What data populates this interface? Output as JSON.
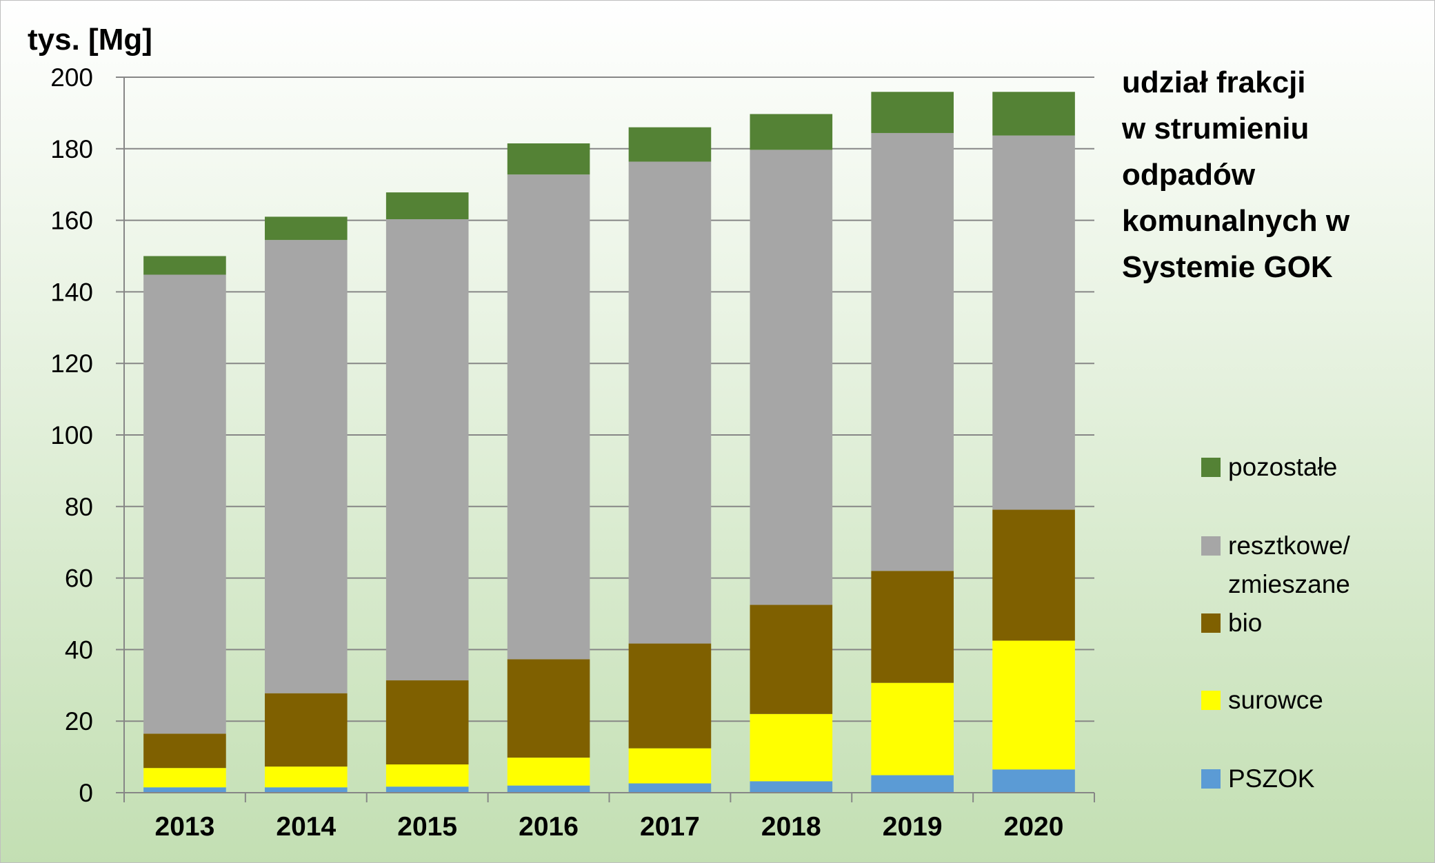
{
  "chart_data": {
    "type": "bar",
    "stacked": true,
    "ylabel": "tys. [Mg]",
    "title_lines": [
      "udział frakcji",
      "w strumieniu",
      "odpadów",
      "komunalnych w",
      "Systemie GOK"
    ],
    "ylim": [
      0,
      200
    ],
    "yticks": [
      0,
      20,
      40,
      60,
      80,
      100,
      120,
      140,
      160,
      180,
      200
    ],
    "grid": true,
    "legend_position": "right",
    "categories": [
      "2013",
      "2014",
      "2015",
      "2016",
      "2017",
      "2018",
      "2019",
      "2020"
    ],
    "series": [
      {
        "name": "PSZOK",
        "color": "#5b9bd5",
        "values": [
          1.5,
          1.5,
          1.7,
          2.0,
          2.6,
          3.2,
          4.9,
          6.5
        ]
      },
      {
        "name": "surowce",
        "color": "#ffff00",
        "values": [
          5.4,
          5.8,
          6.2,
          7.8,
          9.8,
          18.8,
          25.8,
          36.0
        ]
      },
      {
        "name": "bio",
        "color": "#7f6000",
        "values": [
          9.6,
          20.5,
          23.5,
          27.5,
          29.3,
          30.5,
          31.3,
          36.6
        ]
      },
      {
        "name": "resztkowe/ zmieszane",
        "legend_lines": [
          "resztkowe/",
          "zmieszane"
        ],
        "color": "#a6a6a6",
        "values": [
          128.3,
          126.7,
          128.9,
          135.5,
          134.7,
          127.2,
          122.4,
          104.6
        ]
      },
      {
        "name": "pozostałe",
        "color": "#548235",
        "values": [
          5.2,
          6.5,
          7.5,
          8.7,
          9.6,
          10.0,
          11.5,
          12.2
        ]
      }
    ]
  },
  "colors": {
    "background_top": "#ffffff",
    "background_bottom": "#c3dfb3",
    "gridline": "#868686",
    "axis": "#868686"
  }
}
